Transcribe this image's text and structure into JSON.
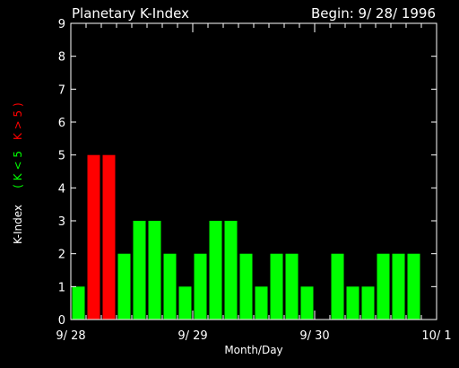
{
  "chart_data": {
    "type": "bar",
    "title": "Planetary K-Index",
    "subtitle": "Begin: 9/ 28/ 1996",
    "xlabel": "Month/Day",
    "ylabel": "K-Index",
    "legend": [
      {
        "label": "( K < 5",
        "color": "#00ff00"
      },
      {
        "label": "K > 5 )",
        "color": "#ff0000"
      }
    ],
    "legend_placement": "left-vertical",
    "ylim": [
      0,
      9
    ],
    "yticks": [
      "0",
      "1",
      "2",
      "3",
      "4",
      "5",
      "6",
      "7",
      "8",
      "9"
    ],
    "xticks": [
      "9/ 28",
      "9/ 29",
      "9/ 30",
      "10/ 1"
    ],
    "bars_per_day": 8,
    "days": 3,
    "values": [
      1,
      5,
      5,
      2,
      3,
      3,
      2,
      1,
      2,
      3,
      3,
      2,
      1,
      2,
      2,
      1,
      0,
      2,
      1,
      1,
      2,
      2,
      2,
      0
    ],
    "threshold": 5,
    "colors": {
      "low": "#00ff00",
      "high": "#ff0000",
      "axis": "#ffffff",
      "background": "#000000"
    },
    "grid": false
  }
}
